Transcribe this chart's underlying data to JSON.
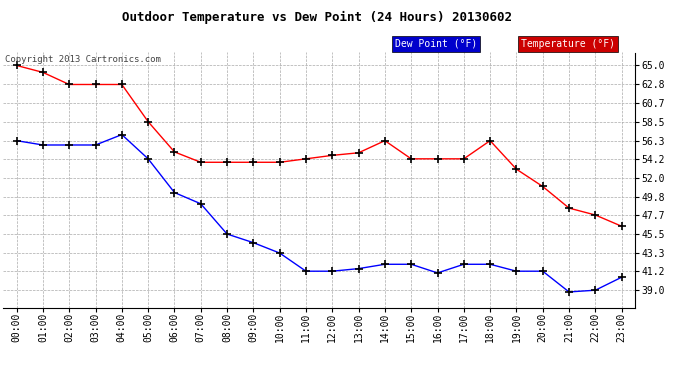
{
  "title": "Outdoor Temperature vs Dew Point (24 Hours) 20130602",
  "copyright": "Copyright 2013 Cartronics.com",
  "background_color": "#ffffff",
  "plot_bg_color": "#ffffff",
  "grid_color": "#aaaaaa",
  "x_labels": [
    "00:00",
    "01:00",
    "02:00",
    "03:00",
    "04:00",
    "05:00",
    "06:00",
    "07:00",
    "08:00",
    "09:00",
    "10:00",
    "11:00",
    "12:00",
    "13:00",
    "14:00",
    "15:00",
    "16:00",
    "17:00",
    "18:00",
    "19:00",
    "20:00",
    "21:00",
    "22:00",
    "23:00"
  ],
  "temperature": [
    65.0,
    64.2,
    62.8,
    62.8,
    62.8,
    58.5,
    55.0,
    53.8,
    53.8,
    53.8,
    53.8,
    54.2,
    54.6,
    54.9,
    56.3,
    54.2,
    54.2,
    54.2,
    56.3,
    53.0,
    51.0,
    48.5,
    47.7,
    46.4
  ],
  "dew_point": [
    56.3,
    55.8,
    55.8,
    55.8,
    57.0,
    54.2,
    50.3,
    49.0,
    45.5,
    44.5,
    43.3,
    41.2,
    41.2,
    41.5,
    42.0,
    42.0,
    41.0,
    42.0,
    42.0,
    41.2,
    41.2,
    38.8,
    39.0,
    40.5
  ],
  "temp_color": "#ff0000",
  "dew_color": "#0000ff",
  "marker": "+",
  "marker_color": "#000000",
  "ylim_min": 37.0,
  "ylim_max": 66.5,
  "yticks": [
    39.0,
    41.2,
    43.3,
    45.5,
    47.7,
    49.8,
    52.0,
    54.2,
    56.3,
    58.5,
    60.7,
    62.8,
    65.0
  ],
  "legend_dew_bg": "#0000cc",
  "legend_temp_bg": "#cc0000",
  "legend_text_color": "#ffffff",
  "title_fontsize": 9,
  "tick_fontsize": 7,
  "copyright_fontsize": 6.5
}
